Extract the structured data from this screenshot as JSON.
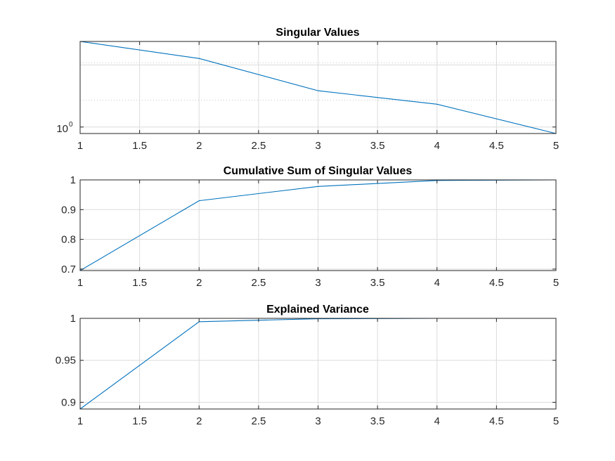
{
  "figure": {
    "background": "#ffffff",
    "line_color": "#0072bd",
    "grid_color": "#dcdcdc"
  },
  "chart_data": [
    {
      "type": "line",
      "title": "Singular Values",
      "xlabel": "",
      "ylabel": "",
      "yscale": "log",
      "grid": "on",
      "x": [
        1,
        2,
        3,
        4,
        5
      ],
      "series": [
        {
          "values": [
            2.6,
            2.15,
            1.5,
            1.29,
            0.93
          ]
        }
      ],
      "xlim": [
        1,
        5
      ],
      "ylim": [
        0.93,
        2.6
      ],
      "xticks": [
        1,
        1.5,
        2,
        2.5,
        3,
        3.5,
        4,
        4.5,
        5
      ],
      "xtick_labels": [
        "1",
        "1.5",
        "2",
        "2.5",
        "3",
        "3.5",
        "4",
        "4.5",
        "5"
      ],
      "yticks": [
        1,
        2,
        3
      ],
      "ytick_labels": [
        {
          "base": "10",
          "exp": "0"
        }
      ],
      "minor_grid": [
        1.35,
        2.05
      ]
    },
    {
      "type": "line",
      "title": "Cumulative Sum of Singular Values",
      "xlabel": "",
      "ylabel": "",
      "grid": "on",
      "x": [
        1,
        2,
        3,
        4,
        5
      ],
      "series": [
        {
          "values": [
            0.695,
            0.93,
            0.978,
            0.998,
            1.0
          ]
        }
      ],
      "xlim": [
        1,
        5
      ],
      "ylim": [
        0.695,
        1.0
      ],
      "xticks": [
        1,
        1.5,
        2,
        2.5,
        3,
        3.5,
        4,
        4.5,
        5
      ],
      "xtick_labels": [
        "1",
        "1.5",
        "2",
        "2.5",
        "3",
        "3.5",
        "4",
        "4.5",
        "5"
      ],
      "yticks": [
        0.7,
        0.8,
        0.9,
        1.0
      ],
      "ytick_labels": [
        "0.7",
        "0.8",
        "0.9",
        "1"
      ]
    },
    {
      "type": "line",
      "title": "Explained Variance",
      "xlabel": "",
      "ylabel": "",
      "grid": "on",
      "x": [
        1,
        2,
        3,
        4,
        5
      ],
      "series": [
        {
          "values": [
            0.892,
            0.996,
            0.9995,
            1.0,
            1.0
          ]
        }
      ],
      "xlim": [
        1,
        5
      ],
      "ylim": [
        0.892,
        1.0
      ],
      "xticks": [
        1,
        1.5,
        2,
        2.5,
        3,
        3.5,
        4,
        4.5,
        5
      ],
      "xtick_labels": [
        "1",
        "1.5",
        "2",
        "2.5",
        "3",
        "3.5",
        "4",
        "4.5",
        "5"
      ],
      "yticks": [
        0.9,
        0.95,
        1.0
      ],
      "ytick_labels": [
        "0.9",
        "0.95",
        "1"
      ]
    }
  ]
}
